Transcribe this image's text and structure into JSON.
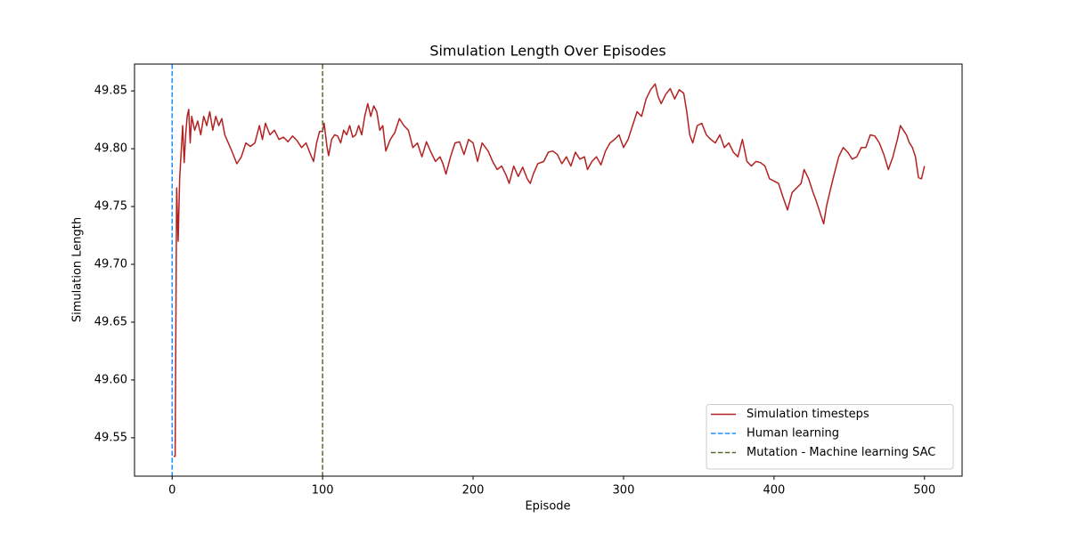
{
  "chart_data": {
    "type": "line",
    "title": "Simulation Length Over Episodes",
    "x_label": "Episode",
    "y_label": "Simulation Length",
    "series": [
      {
        "name": "Simulation timesteps",
        "color": "#b22222",
        "x": [
          1,
          2,
          3,
          4,
          5,
          6,
          7,
          8,
          9,
          10,
          11,
          12,
          13,
          15,
          17,
          19,
          21,
          23,
          25,
          27,
          29,
          31,
          33,
          35,
          37,
          40,
          43,
          46,
          49,
          52,
          55,
          58,
          60,
          62,
          65,
          68,
          71,
          74,
          77,
          80,
          83,
          86,
          89,
          92,
          94,
          96,
          98,
          100,
          101,
          103,
          104,
          106,
          108,
          110,
          112,
          114,
          116,
          118,
          120,
          122,
          124,
          126,
          128,
          130,
          132,
          134,
          136,
          138,
          140,
          142,
          145,
          148,
          151,
          154,
          157,
          160,
          163,
          166,
          169,
          172,
          175,
          178,
          180,
          182,
          185,
          188,
          191,
          194,
          197,
          200,
          203,
          206,
          210,
          213,
          216,
          219,
          222,
          224,
          227,
          230,
          233,
          236,
          238,
          240,
          243,
          247,
          250,
          253,
          256,
          259,
          262,
          265,
          268,
          271,
          274,
          276,
          279,
          282,
          285,
          288,
          291,
          294,
          297,
          300,
          303,
          306,
          309,
          312,
          315,
          318,
          321,
          323,
          325,
          328,
          331,
          334,
          337,
          340,
          342,
          344,
          346,
          349,
          352,
          355,
          358,
          361,
          364,
          367,
          370,
          373,
          376,
          379,
          382,
          385,
          388,
          391,
          394,
          397,
          400,
          403,
          406,
          409,
          412,
          415,
          418,
          420,
          423,
          426,
          428,
          431,
          433,
          435,
          437,
          440,
          443,
          446,
          449,
          452,
          455,
          458,
          461,
          464,
          467,
          470,
          473,
          476,
          479,
          482,
          484,
          486,
          488,
          490,
          492,
          494,
          496,
          498,
          500
        ],
        "values": [
          49.534,
          49.534,
          49.766,
          49.72,
          49.774,
          49.797,
          49.82,
          49.788,
          49.812,
          49.828,
          49.834,
          49.805,
          49.828,
          49.816,
          49.824,
          49.812,
          49.828,
          49.82,
          49.832,
          49.816,
          49.828,
          49.82,
          49.826,
          49.812,
          49.806,
          49.797,
          49.787,
          49.793,
          49.805,
          49.802,
          49.805,
          49.82,
          49.808,
          49.822,
          49.812,
          49.816,
          49.808,
          49.81,
          49.806,
          49.811,
          49.807,
          49.801,
          49.805,
          49.795,
          49.789,
          49.805,
          49.815,
          49.815,
          49.822,
          49.801,
          49.794,
          49.808,
          49.812,
          49.811,
          49.805,
          49.816,
          49.812,
          49.82,
          49.81,
          49.812,
          49.82,
          49.812,
          49.828,
          49.839,
          49.828,
          49.837,
          49.832,
          49.816,
          49.82,
          49.798,
          49.808,
          49.814,
          49.826,
          49.82,
          49.816,
          49.801,
          49.805,
          49.793,
          49.806,
          49.797,
          49.789,
          49.793,
          49.787,
          49.778,
          49.793,
          49.805,
          49.806,
          49.795,
          49.808,
          49.805,
          49.789,
          49.805,
          49.798,
          49.789,
          49.782,
          49.785,
          49.777,
          49.77,
          49.785,
          49.776,
          49.784,
          49.774,
          49.77,
          49.778,
          49.787,
          49.789,
          49.797,
          49.798,
          49.795,
          49.787,
          49.793,
          49.785,
          49.797,
          49.791,
          49.793,
          49.782,
          49.789,
          49.793,
          49.786,
          49.798,
          49.805,
          49.808,
          49.812,
          49.801,
          49.808,
          49.82,
          49.832,
          49.828,
          49.843,
          49.851,
          49.856,
          49.845,
          49.839,
          49.847,
          49.852,
          49.843,
          49.851,
          49.848,
          49.832,
          49.812,
          49.805,
          49.82,
          49.822,
          49.812,
          49.808,
          49.805,
          49.812,
          49.801,
          49.805,
          49.797,
          49.793,
          49.808,
          49.789,
          49.785,
          49.789,
          49.788,
          49.785,
          49.774,
          49.772,
          49.77,
          49.758,
          49.747,
          49.762,
          49.766,
          49.77,
          49.782,
          49.774,
          49.762,
          49.755,
          49.743,
          49.735,
          49.751,
          49.762,
          49.778,
          49.793,
          49.801,
          49.797,
          49.791,
          49.793,
          49.801,
          49.801,
          49.812,
          49.811,
          49.805,
          49.795,
          49.782,
          49.793,
          49.808,
          49.82,
          49.816,
          49.812,
          49.805,
          49.801,
          49.793,
          49.775,
          49.774,
          49.785
        ]
      }
    ],
    "vlines": [
      {
        "x": 0,
        "name": "Human learning",
        "color": "#1e90ff"
      },
      {
        "x": 100,
        "name": "Mutation - Machine learning SAC",
        "color": "#556b2f"
      }
    ],
    "xlim": [
      -25,
      525
    ],
    "xticks": [
      0,
      100,
      200,
      300,
      400,
      500
    ],
    "ylim": [
      49.5168,
      49.8732
    ],
    "yticks": [
      49.55,
      {
        "value": 49.6,
        "label": "49.60"
      },
      49.65,
      {
        "value": 49.7,
        "label": "49.70"
      },
      49.75,
      {
        "value": 49.8,
        "label": "49.80"
      },
      49.85
    ],
    "legend": "lower right",
    "grid": false
  }
}
